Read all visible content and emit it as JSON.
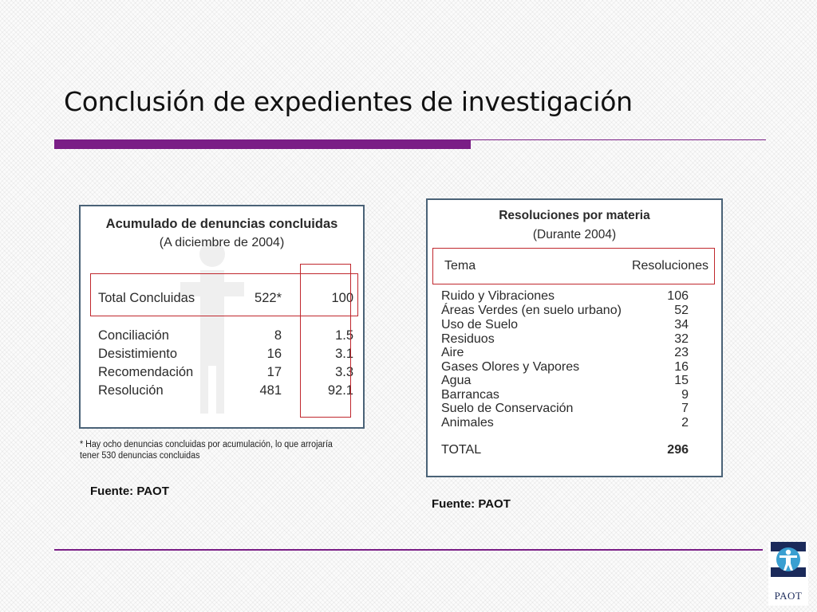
{
  "slide": {
    "title": "Conclusión de expedientes de investigación",
    "accent_color": "#7a1e86",
    "highlight_color": "#c0272d"
  },
  "left_table": {
    "title": "Acumulado de denuncias concluidas",
    "subtitle": "(A  diciembre de 2004)",
    "total": {
      "label": "Total Concluidas",
      "count": "522*",
      "percent": "100"
    },
    "rows": [
      {
        "label": "Conciliación",
        "count": "8",
        "percent": "1.5"
      },
      {
        "label": "Desistimiento",
        "count": "16",
        "percent": "3.1"
      },
      {
        "label": "Recomendación",
        "count": "17",
        "percent": "3.3"
      },
      {
        "label": "Resolución",
        "count": "481",
        "percent": "92.1"
      }
    ],
    "footnote": "* Hay ocho denuncias concluidas por acumulación, lo que arrojaría tener 530 denuncias concluidas",
    "source": "Fuente: PAOT"
  },
  "right_table": {
    "title": "Resoluciones por materia",
    "subtitle": "(Durante 2004)",
    "col_topic": "Tema",
    "col_count": "Resoluciones",
    "rows": [
      {
        "label": "Ruido y Vibraciones",
        "value": "106"
      },
      {
        "label": "Áreas Verdes (en suelo urbano)",
        "value": "52"
      },
      {
        "label": "Uso de Suelo",
        "value": "34"
      },
      {
        "label": "Residuos",
        "value": "32"
      },
      {
        "label": "Aire",
        "value": "23"
      },
      {
        "label": "Gases Olores y Vapores",
        "value": "16"
      },
      {
        "label": "Agua",
        "value": "15"
      },
      {
        "label": "Barrancas",
        "value": "9"
      },
      {
        "label": "Suelo de Conservación",
        "value": "7"
      },
      {
        "label": "Animales",
        "value": "2"
      }
    ],
    "total_label": "TOTAL",
    "total_value": "296",
    "source": "Fuente: PAOT"
  },
  "logo": {
    "icon": "paot-person-icon",
    "text": "PAOT"
  }
}
